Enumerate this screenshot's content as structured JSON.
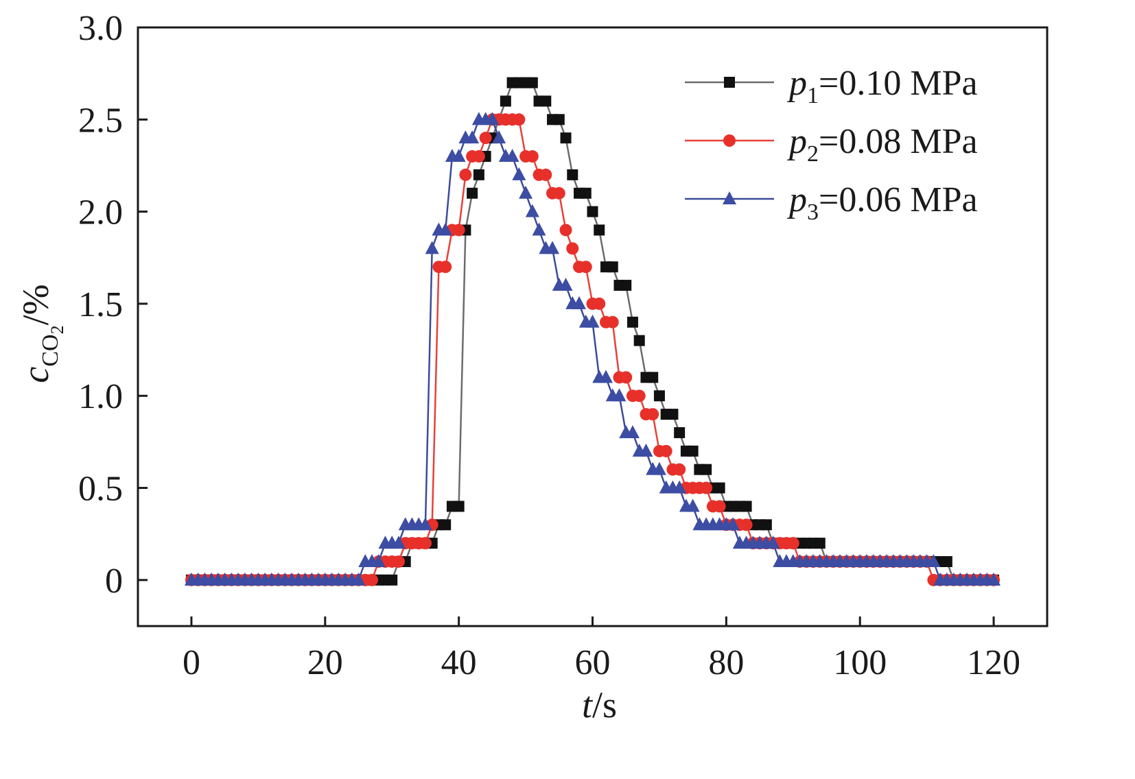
{
  "chart_data": {
    "type": "line",
    "xlabel": {
      "italic": "t",
      "rest": "/s"
    },
    "ylabel": {
      "italic": "c",
      "sub": "CO",
      "subsub": "2",
      "rest": "/%"
    },
    "xlim": [
      -8,
      128
    ],
    "ylim": [
      -0.25,
      3.0
    ],
    "xticks": [
      0,
      20,
      40,
      60,
      80,
      100,
      120
    ],
    "xtick_labels": [
      "0",
      "20",
      "40",
      "60",
      "80",
      "100",
      "120"
    ],
    "yticks": [
      0,
      0.5,
      1.0,
      1.5,
      2.0,
      2.5,
      3.0
    ],
    "ytick_labels": [
      "0",
      "0.5",
      "1.0",
      "1.5",
      "2.0",
      "2.5",
      "3.0"
    ],
    "grid": false,
    "legend_position": "top-right",
    "series": [
      {
        "name": "p1=0.10 MPa",
        "label_italic": "p",
        "label_sub": "1",
        "label_rest": "=0.10 MPa",
        "marker": "square",
        "line_color": "#6b6b6b",
        "marker_color": "#111111",
        "x": [
          0,
          1,
          2,
          3,
          4,
          5,
          6,
          7,
          8,
          9,
          10,
          11,
          12,
          13,
          14,
          15,
          16,
          17,
          18,
          19,
          20,
          21,
          22,
          23,
          24,
          25,
          26,
          27,
          28,
          29,
          30,
          31,
          32,
          33,
          34,
          35,
          36,
          37,
          38,
          39,
          40,
          41,
          42,
          43,
          44,
          45,
          46,
          47,
          48,
          49,
          50,
          51,
          52,
          53,
          54,
          55,
          56,
          57,
          58,
          59,
          60,
          61,
          62,
          63,
          64,
          65,
          66,
          67,
          68,
          69,
          70,
          71,
          72,
          73,
          74,
          75,
          76,
          77,
          78,
          79,
          80,
          81,
          82,
          83,
          84,
          85,
          86,
          87,
          88,
          89,
          90,
          91,
          92,
          93,
          94,
          95,
          96,
          97,
          98,
          99,
          100,
          101,
          102,
          103,
          104,
          105,
          106,
          107,
          108,
          109,
          110,
          111,
          112,
          113,
          114,
          115,
          116,
          117,
          118,
          119,
          120
        ],
        "y": [
          0,
          0,
          0,
          0,
          0,
          0,
          0,
          0,
          0,
          0,
          0,
          0,
          0,
          0,
          0,
          0,
          0,
          0,
          0,
          0,
          0,
          0,
          0,
          0,
          0,
          0,
          0,
          0,
          0,
          0,
          0,
          0.1,
          0.1,
          0.2,
          0.2,
          0.2,
          0.2,
          0.3,
          0.3,
          0.4,
          0.4,
          1.9,
          2.1,
          2.2,
          2.3,
          2.4,
          2.5,
          2.6,
          2.7,
          2.7,
          2.7,
          2.7,
          2.6,
          2.6,
          2.5,
          2.5,
          2.4,
          2.2,
          2.1,
          2.1,
          2.0,
          1.9,
          1.7,
          1.7,
          1.6,
          1.6,
          1.4,
          1.3,
          1.1,
          1.1,
          1.0,
          0.9,
          0.9,
          0.8,
          0.7,
          0.7,
          0.6,
          0.6,
          0.5,
          0.5,
          0.4,
          0.4,
          0.4,
          0.4,
          0.3,
          0.3,
          0.3,
          0.2,
          0.2,
          0.2,
          0.2,
          0.2,
          0.2,
          0.2,
          0.2,
          0.1,
          0.1,
          0.1,
          0.1,
          0.1,
          0.1,
          0.1,
          0.1,
          0.1,
          0.1,
          0.1,
          0.1,
          0.1,
          0.1,
          0.1,
          0.1,
          0.1,
          0.1,
          0.1,
          0,
          0,
          0,
          0,
          0,
          0,
          0
        ]
      },
      {
        "name": "p2=0.08 MPa",
        "label_italic": "p",
        "label_sub": "2",
        "label_rest": "=0.08 MPa",
        "marker": "circle",
        "line_color": "#e8403a",
        "marker_color": "#e8302a",
        "x": [
          0,
          1,
          2,
          3,
          4,
          5,
          6,
          7,
          8,
          9,
          10,
          11,
          12,
          13,
          14,
          15,
          16,
          17,
          18,
          19,
          20,
          21,
          22,
          23,
          24,
          25,
          26,
          27,
          28,
          29,
          30,
          31,
          32,
          33,
          34,
          35,
          36,
          37,
          38,
          39,
          40,
          41,
          42,
          43,
          44,
          45,
          46,
          47,
          48,
          49,
          50,
          51,
          52,
          53,
          54,
          55,
          56,
          57,
          58,
          59,
          60,
          61,
          62,
          63,
          64,
          65,
          66,
          67,
          68,
          69,
          70,
          71,
          72,
          73,
          74,
          75,
          76,
          77,
          78,
          79,
          80,
          81,
          82,
          83,
          84,
          85,
          86,
          87,
          88,
          89,
          90,
          91,
          92,
          93,
          94,
          95,
          96,
          97,
          98,
          99,
          100,
          101,
          102,
          103,
          104,
          105,
          106,
          107,
          108,
          109,
          110,
          111,
          112,
          113,
          114,
          115,
          116,
          117,
          118,
          119,
          120
        ],
        "y": [
          0,
          0,
          0,
          0,
          0,
          0,
          0,
          0,
          0,
          0,
          0,
          0,
          0,
          0,
          0,
          0,
          0,
          0,
          0,
          0,
          0,
          0,
          0,
          0,
          0,
          0,
          0,
          0,
          0.1,
          0.1,
          0.1,
          0.1,
          0.2,
          0.2,
          0.2,
          0.2,
          0.3,
          1.7,
          1.7,
          1.9,
          1.9,
          2.2,
          2.3,
          2.3,
          2.4,
          2.5,
          2.5,
          2.5,
          2.5,
          2.5,
          2.3,
          2.3,
          2.2,
          2.2,
          2.1,
          2.1,
          1.9,
          1.8,
          1.7,
          1.7,
          1.5,
          1.5,
          1.4,
          1.4,
          1.1,
          1.1,
          1.0,
          1.0,
          0.9,
          0.9,
          0.7,
          0.7,
          0.6,
          0.6,
          0.5,
          0.5,
          0.5,
          0.5,
          0.4,
          0.4,
          0.3,
          0.3,
          0.3,
          0.3,
          0.2,
          0.2,
          0.2,
          0.2,
          0.2,
          0.2,
          0.2,
          0.1,
          0.1,
          0.1,
          0.1,
          0.1,
          0.1,
          0.1,
          0.1,
          0.1,
          0.1,
          0.1,
          0.1,
          0.1,
          0.1,
          0.1,
          0.1,
          0.1,
          0.1,
          0.1,
          0.1,
          0,
          0,
          0,
          0,
          0,
          0,
          0,
          0,
          0,
          0
        ]
      },
      {
        "name": "p3=0.06 MPa",
        "label_italic": "p",
        "label_sub": "3",
        "label_rest": "=0.06 MPa",
        "marker": "triangle",
        "line_color": "#3b4a9a",
        "marker_color": "#3c4da3",
        "x": [
          0,
          1,
          2,
          3,
          4,
          5,
          6,
          7,
          8,
          9,
          10,
          11,
          12,
          13,
          14,
          15,
          16,
          17,
          18,
          19,
          20,
          21,
          22,
          23,
          24,
          25,
          26,
          27,
          28,
          29,
          30,
          31,
          32,
          33,
          34,
          35,
          36,
          37,
          38,
          39,
          40,
          41,
          42,
          43,
          44,
          45,
          46,
          47,
          48,
          49,
          50,
          51,
          52,
          53,
          54,
          55,
          56,
          57,
          58,
          59,
          60,
          61,
          62,
          63,
          64,
          65,
          66,
          67,
          68,
          69,
          70,
          71,
          72,
          73,
          74,
          75,
          76,
          77,
          78,
          79,
          80,
          81,
          82,
          83,
          84,
          85,
          86,
          87,
          88,
          89,
          90,
          91,
          92,
          93,
          94,
          95,
          96,
          97,
          98,
          99,
          100,
          101,
          102,
          103,
          104,
          105,
          106,
          107,
          108,
          109,
          110,
          111,
          112,
          113,
          114,
          115,
          116,
          117,
          118,
          119,
          120
        ],
        "y": [
          0,
          0,
          0,
          0,
          0,
          0,
          0,
          0,
          0,
          0,
          0,
          0,
          0,
          0,
          0,
          0,
          0,
          0,
          0,
          0,
          0,
          0,
          0,
          0,
          0,
          0,
          0.1,
          0.1,
          0.1,
          0.2,
          0.2,
          0.2,
          0.3,
          0.3,
          0.3,
          0.3,
          1.8,
          1.9,
          1.9,
          2.3,
          2.3,
          2.4,
          2.4,
          2.5,
          2.5,
          2.5,
          2.4,
          2.3,
          2.3,
          2.2,
          2.1,
          2.0,
          1.9,
          1.8,
          1.8,
          1.6,
          1.6,
          1.5,
          1.5,
          1.4,
          1.4,
          1.1,
          1.1,
          1.0,
          1.0,
          0.8,
          0.8,
          0.7,
          0.7,
          0.6,
          0.6,
          0.5,
          0.5,
          0.5,
          0.4,
          0.4,
          0.3,
          0.3,
          0.3,
          0.3,
          0.3,
          0.3,
          0.2,
          0.2,
          0.2,
          0.2,
          0.2,
          0.2,
          0.1,
          0.1,
          0.1,
          0.1,
          0.1,
          0.1,
          0.1,
          0.1,
          0.1,
          0.1,
          0.1,
          0.1,
          0.1,
          0.1,
          0.1,
          0.1,
          0.1,
          0.1,
          0.1,
          0.1,
          0.1,
          0.1,
          0.1,
          0.1,
          0,
          0,
          0,
          0,
          0,
          0,
          0,
          0,
          0
        ]
      }
    ]
  }
}
